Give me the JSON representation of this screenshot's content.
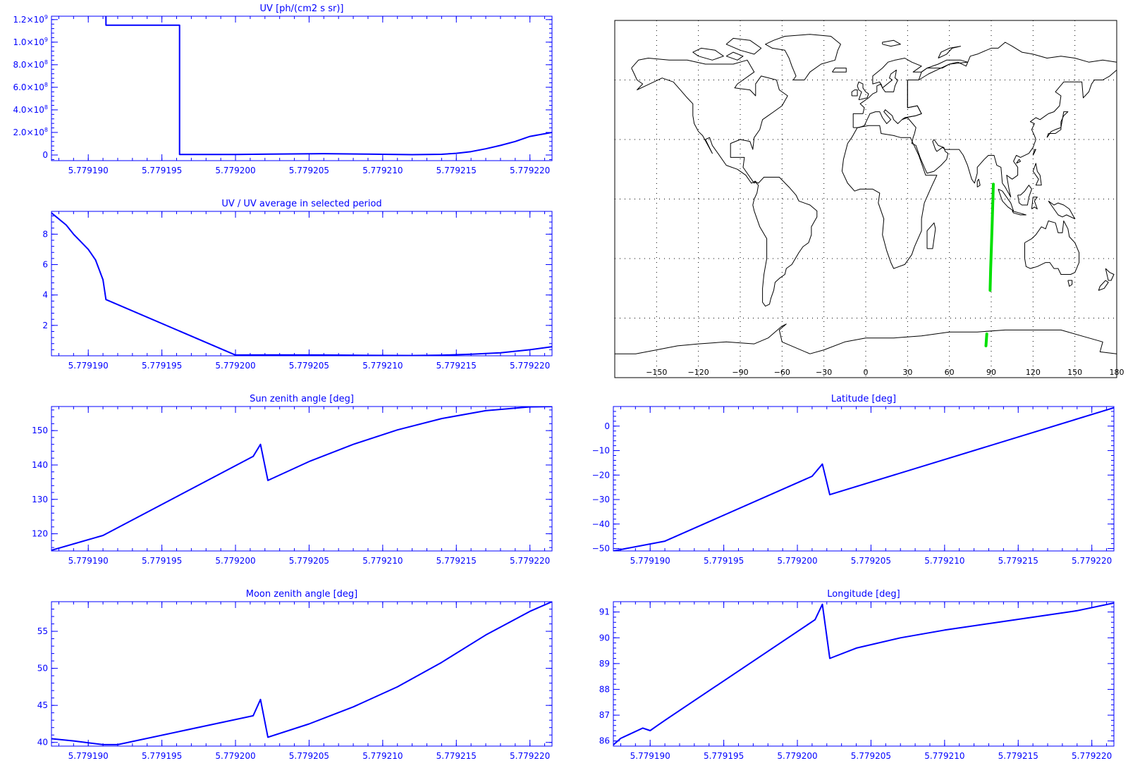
{
  "colors": {
    "axis": "#0000ff",
    "line": "#0000ff",
    "map_outline": "#000000",
    "track": "#00e000",
    "background": "#ffffff"
  },
  "chart_data": [
    {
      "id": "uv",
      "type": "line",
      "step": true,
      "title": "UV [ph/(cm2 s sr)]",
      "xlabel": "",
      "ylabel": "",
      "xlim": [
        5.7791875,
        5.7792215
      ],
      "ylim": [
        -50000000,
        1230000000
      ],
      "x_ticks": [
        5.77919,
        5.779195,
        5.7792,
        5.779205,
        5.77921,
        5.779215,
        5.77922
      ],
      "x_tick_labels": [
        "5.779190",
        "5.779195",
        "5.779200",
        "5.779205",
        "5.779210",
        "5.779215",
        "5.779220"
      ],
      "y_ticks": [
        0,
        200000000,
        400000000,
        600000000,
        800000000,
        1000000000,
        1200000000
      ],
      "y_tick_labels": [
        {
          "m": "0",
          "e": ""
        },
        {
          "m": "2.0×10",
          "e": "8"
        },
        {
          "m": "4.0×10",
          "e": "8"
        },
        {
          "m": "6.0×10",
          "e": "8"
        },
        {
          "m": "8.0×10",
          "e": "8"
        },
        {
          "m": "1.0×10",
          "e": "9"
        },
        {
          "m": "1.2×10",
          "e": "9"
        }
      ],
      "grid": false,
      "series": [
        {
          "x": [
            5.7791912,
            5.7791912,
            5.7791962,
            5.7791962,
            5.7792,
            5.779203,
            5.779206,
            5.779209,
            5.779212,
            5.779214,
            5.779215,
            5.779216,
            5.779217,
            5.779218,
            5.779219,
            5.77922,
            5.7792215
          ],
          "y": [
            1230000000,
            1150000000,
            1150000000,
            5000000,
            5000000,
            9000000,
            12000000,
            8000000,
            3000000,
            6000000,
            15000000,
            30000000,
            55000000,
            85000000,
            120000000,
            165000000,
            200000000
          ]
        }
      ]
    },
    {
      "id": "uv-ratio",
      "type": "line",
      "title": "UV / UV average in selected period",
      "xlabel": "",
      "ylabel": "",
      "xlim": [
        5.7791875,
        5.7792215
      ],
      "ylim": [
        0,
        9.5
      ],
      "x_ticks": [
        5.77919,
        5.779195,
        5.7792,
        5.779205,
        5.77921,
        5.779215,
        5.77922
      ],
      "x_tick_labels": [
        "5.779190",
        "5.779195",
        "5.779200",
        "5.779205",
        "5.779210",
        "5.779215",
        "5.779220"
      ],
      "y_ticks": [
        2,
        4,
        6,
        8
      ],
      "y_tick_labels": [
        "2",
        "4",
        "6",
        "8"
      ],
      "grid": false,
      "series": [
        {
          "x": [
            5.7791875,
            5.7791885,
            5.779189,
            5.7791895,
            5.77919,
            5.7791905,
            5.779191,
            5.7791912,
            5.7792,
            5.779203,
            5.779206,
            5.779209,
            5.779212,
            5.779214,
            5.779216,
            5.779218,
            5.77922,
            5.7792215
          ],
          "y": [
            9.4,
            8.6,
            8.0,
            7.5,
            7.0,
            6.3,
            5.0,
            3.7,
            0.05,
            0.06,
            0.05,
            0.03,
            0.02,
            0.04,
            0.1,
            0.2,
            0.4,
            0.6
          ]
        }
      ]
    },
    {
      "id": "sun-zenith",
      "type": "line",
      "title": "Sun zenith angle [deg]",
      "xlabel": "",
      "ylabel": "",
      "xlim": [
        5.7791875,
        5.7792215
      ],
      "ylim": [
        115,
        157
      ],
      "x_ticks": [
        5.77919,
        5.779195,
        5.7792,
        5.779205,
        5.77921,
        5.779215,
        5.77922
      ],
      "x_tick_labels": [
        "5.779190",
        "5.779195",
        "5.779200",
        "5.779205",
        "5.779210",
        "5.779215",
        "5.779220"
      ],
      "y_ticks": [
        120,
        130,
        140,
        150
      ],
      "y_tick_labels": [
        "120",
        "130",
        "140",
        "150"
      ],
      "grid": false,
      "series": [
        {
          "x": [
            5.7791875,
            5.779191,
            5.7792012,
            5.7792017,
            5.7792022,
            5.779205,
            5.779208,
            5.779211,
            5.779214,
            5.779217,
            5.77922,
            5.7792215
          ],
          "y": [
            115.2,
            119.5,
            142.5,
            146,
            135.5,
            141,
            146,
            150.2,
            153.5,
            155.8,
            156.9,
            157
          ]
        }
      ]
    },
    {
      "id": "latitude",
      "type": "line",
      "title": "Latitude [deg]",
      "xlabel": "",
      "ylabel": "",
      "xlim": [
        5.7791875,
        5.7792215
      ],
      "ylim": [
        -51,
        8
      ],
      "x_ticks": [
        5.77919,
        5.779195,
        5.7792,
        5.779205,
        5.77921,
        5.779215,
        5.77922
      ],
      "x_tick_labels": [
        "5.779190",
        "5.779195",
        "5.779200",
        "5.779205",
        "5.779210",
        "5.779215",
        "5.779220"
      ],
      "y_ticks": [
        -50,
        -40,
        -30,
        -20,
        -10,
        0
      ],
      "y_tick_labels": [
        "−50",
        "−40",
        "−30",
        "−20",
        "−10",
        "0"
      ],
      "grid": false,
      "series": [
        {
          "x": [
            5.7791875,
            5.779191,
            5.779201,
            5.7792017,
            5.7792022,
            5.7792215
          ],
          "y": [
            -51,
            -47,
            -20.5,
            -15.5,
            -28,
            7.5
          ]
        }
      ]
    },
    {
      "id": "moon-zenith",
      "type": "line",
      "title": "Moon zenith angle [deg]",
      "xlabel": "",
      "ylabel": "",
      "xlim": [
        5.7791875,
        5.7792215
      ],
      "ylim": [
        39.5,
        59
      ],
      "x_ticks": [
        5.77919,
        5.779195,
        5.7792,
        5.779205,
        5.77921,
        5.779215,
        5.77922
      ],
      "x_tick_labels": [
        "5.779190",
        "5.779195",
        "5.779200",
        "5.779205",
        "5.779210",
        "5.779215",
        "5.779220"
      ],
      "y_ticks": [
        40,
        45,
        50,
        55
      ],
      "y_tick_labels": [
        "40",
        "45",
        "50",
        "55"
      ],
      "grid": false,
      "series": [
        {
          "x": [
            5.7791875,
            5.779189,
            5.779191,
            5.779192,
            5.7792012,
            5.7792017,
            5.7792022,
            5.779205,
            5.779208,
            5.779211,
            5.779214,
            5.779217,
            5.77922,
            5.7792215
          ],
          "y": [
            40.5,
            40.2,
            39.7,
            39.7,
            43.6,
            45.8,
            40.7,
            42.5,
            44.8,
            47.5,
            50.8,
            54.5,
            57.7,
            59
          ]
        }
      ]
    },
    {
      "id": "longitude",
      "type": "line",
      "title": "Longitude [deg]",
      "xlabel": "",
      "ylabel": "",
      "xlim": [
        5.7791875,
        5.7792215
      ],
      "ylim": [
        85.8,
        91.4
      ],
      "x_ticks": [
        5.77919,
        5.779195,
        5.7792,
        5.779205,
        5.77921,
        5.779215,
        5.77922
      ],
      "x_tick_labels": [
        "5.779190",
        "5.779195",
        "5.779200",
        "5.779205",
        "5.779210",
        "5.779215",
        "5.779220"
      ],
      "y_ticks": [
        86,
        87,
        88,
        89,
        90,
        91
      ],
      "y_tick_labels": [
        "86",
        "87",
        "88",
        "89",
        "90",
        "91"
      ],
      "grid": false,
      "series": [
        {
          "x": [
            5.7791875,
            5.779188,
            5.7791895,
            5.77919,
            5.7791905,
            5.779191,
            5.7792012,
            5.7792017,
            5.7792022,
            5.779204,
            5.779207,
            5.77921,
            5.779213,
            5.779216,
            5.779219,
            5.7792215
          ],
          "y": [
            85.85,
            86.1,
            86.5,
            86.4,
            86.6,
            86.8,
            90.7,
            91.3,
            89.2,
            89.6,
            90.0,
            90.3,
            90.55,
            90.8,
            91.05,
            91.35
          ]
        }
      ]
    }
  ],
  "map": {
    "type": "map",
    "x_ticks": [
      -150,
      -120,
      -90,
      -60,
      -30,
      0,
      30,
      60,
      90,
      120,
      150,
      180
    ],
    "x_tick_labels": [
      "−150",
      "−120",
      "−90",
      "−60",
      "−30",
      "0",
      "30",
      "60",
      "90",
      "120",
      "150",
      "180"
    ],
    "lon_range": [
      -180,
      180
    ],
    "lat_range": [
      -90,
      90
    ],
    "grid": "dotted",
    "track": [
      {
        "lon": [
          91.5,
          90.6,
          89.6,
          89.2
        ],
        "lat": [
          7.5,
          -14,
          -35,
          -46
        ]
      },
      {
        "lon": [
          86.8,
          86.2
        ],
        "lat": [
          -68,
          -74
        ]
      }
    ]
  }
}
